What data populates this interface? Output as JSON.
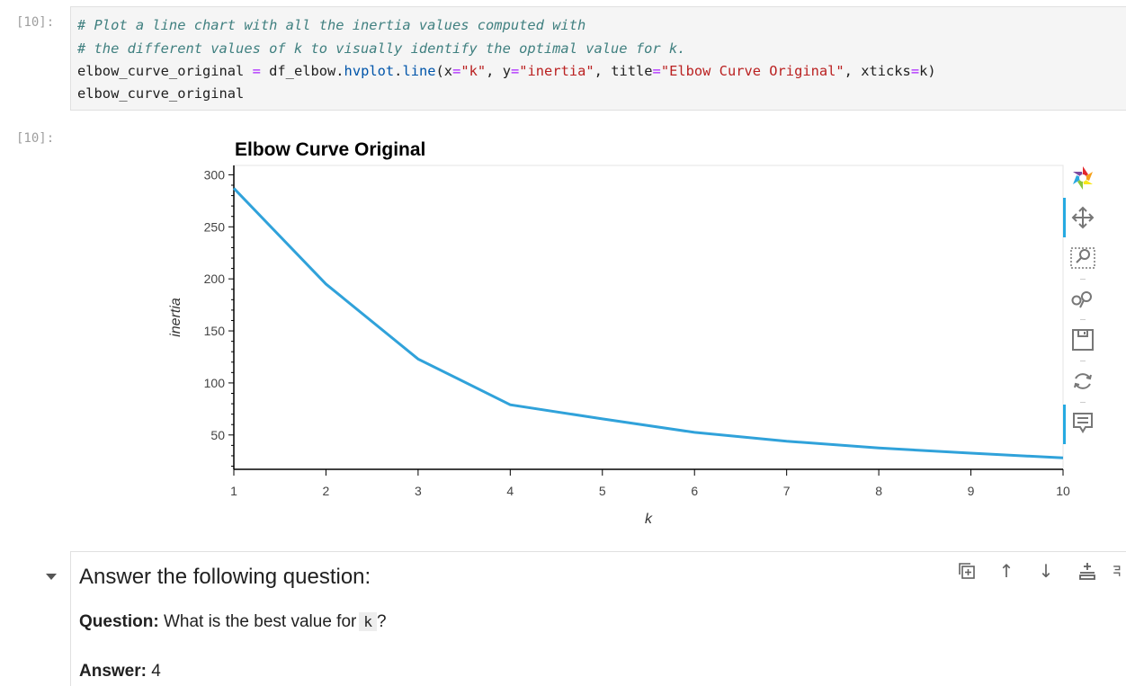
{
  "code_cell": {
    "prompt": "[10]:",
    "line1": "# Plot a line chart with all the inertia values computed with",
    "line2": "# the different values of k to visually identify the optimal value for k.",
    "line3": {
      "a": "elbow_curve_original ",
      "op1": "=",
      "b": " df_elbow.",
      "attr1": "hvplot",
      "c": ".",
      "attr2": "line",
      "d": "(x",
      "op2": "=",
      "s1": "\"k\"",
      "e": ", y",
      "op3": "=",
      "s2": "\"inertia\"",
      "f": ", title",
      "op4": "=",
      "s3": "\"Elbow Curve Original\"",
      "g": ", xticks",
      "op5": "=",
      "h": "k)"
    },
    "line4": "elbow_curve_original"
  },
  "output": {
    "prompt": "[10]:"
  },
  "chart_data": {
    "type": "line",
    "title": "Elbow Curve Original",
    "xlabel": "k",
    "ylabel": "inertia",
    "x": [
      1,
      2,
      3,
      4,
      5,
      6,
      7,
      8,
      9,
      10
    ],
    "series": [
      {
        "values": [
          287,
          195,
          123,
          79,
          65.5,
          52.5,
          44,
          37.5,
          32.5,
          28
        ]
      }
    ],
    "xlim": [
      1,
      10
    ],
    "ylim": [
      17,
      309
    ],
    "yticks": [
      50,
      100,
      150,
      200,
      250,
      300
    ],
    "xticks": [
      1,
      2,
      3,
      4,
      5,
      6,
      7,
      8,
      9,
      10
    ],
    "line_color": "#30a2da",
    "grid": false
  },
  "toolbar": {
    "icons": [
      "bokeh-logo-icon",
      "pan-icon",
      "box-zoom-icon",
      "wheel-zoom-icon",
      "save-icon",
      "reset-icon",
      "hover-icon"
    ]
  },
  "markdown_cell": {
    "heading": "Answer the following question:",
    "question_label": "Question:",
    "question_text": " What is the best value for",
    "question_code": "k",
    "question_end": "?",
    "answer_label": "Answer:",
    "answer_text": " 4"
  },
  "cell_toolbar": {
    "icons": [
      "duplicate-icon",
      "move-up-icon",
      "move-down-icon",
      "insert-below-icon",
      "more-icon"
    ],
    "labels": [
      "↑",
      "↓"
    ]
  }
}
